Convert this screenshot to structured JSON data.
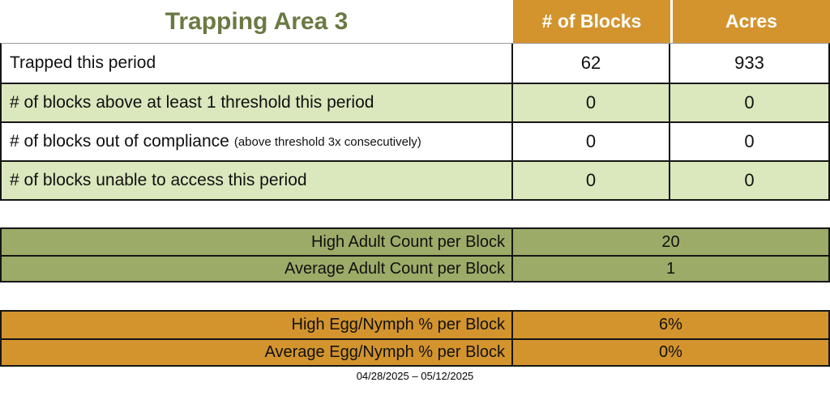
{
  "title": "Trapping Area 3",
  "columns": {
    "blocks": "# of Blocks",
    "acres": "Acres"
  },
  "summary_rows": [
    {
      "label": "Trapped this period",
      "blocks": "62",
      "acres": "933"
    },
    {
      "label": "# of blocks above at least 1 threshold this period",
      "blocks": "0",
      "acres": "0"
    },
    {
      "label": "# of blocks out of compliance",
      "note": "(above threshold 3x consecutively)",
      "blocks": "0",
      "acres": "0"
    },
    {
      "label": "# of blocks unable to access this period",
      "blocks": "0",
      "acres": "0"
    }
  ],
  "adult_counts": [
    {
      "label": "High Adult Count per Block",
      "value": "20"
    },
    {
      "label": "Average Adult Count per Block",
      "value": "1"
    }
  ],
  "egg_nymph": [
    {
      "label": "High Egg/Nymph % per Block",
      "value": "6%"
    },
    {
      "label": "Average Egg/Nymph % per Block",
      "value": "0%"
    }
  ],
  "date_range": "04/28/2025 – 05/12/2025",
  "colors": {
    "orange": "#D3942E",
    "light_green": "#DBE7BC",
    "olive": "#9DAB68",
    "title_green": "#6A7A43"
  }
}
